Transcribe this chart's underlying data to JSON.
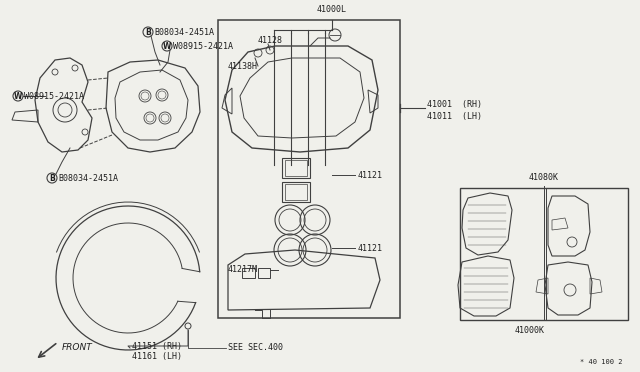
{
  "bg_color": "#f0f0eb",
  "lc": "#404040",
  "tc": "#202020",
  "fs": 6.0,
  "labels": {
    "B_08034_top": "B08034-2451A",
    "W_08915_top": "W08915-2421A",
    "W_08915_left": "W08915-2421A",
    "B_08034_bot": "B08034-2451A",
    "label_41000L": "41000L",
    "label_41128": "41128",
    "label_41138H": "41138H",
    "label_41121_top": "41121",
    "label_41121_bot": "41121",
    "label_41217M": "41217M",
    "label_41001": "41001  (RH)",
    "label_41011": "41011  (LH)",
    "label_41080K": "41080K",
    "label_41000K": "41000K",
    "label_41151": "41151 (RH)",
    "label_41161": "41161 (LH)",
    "label_see": "SEE SEC.400",
    "label_front": "FRONT",
    "label_page": "* 40 100 2"
  }
}
